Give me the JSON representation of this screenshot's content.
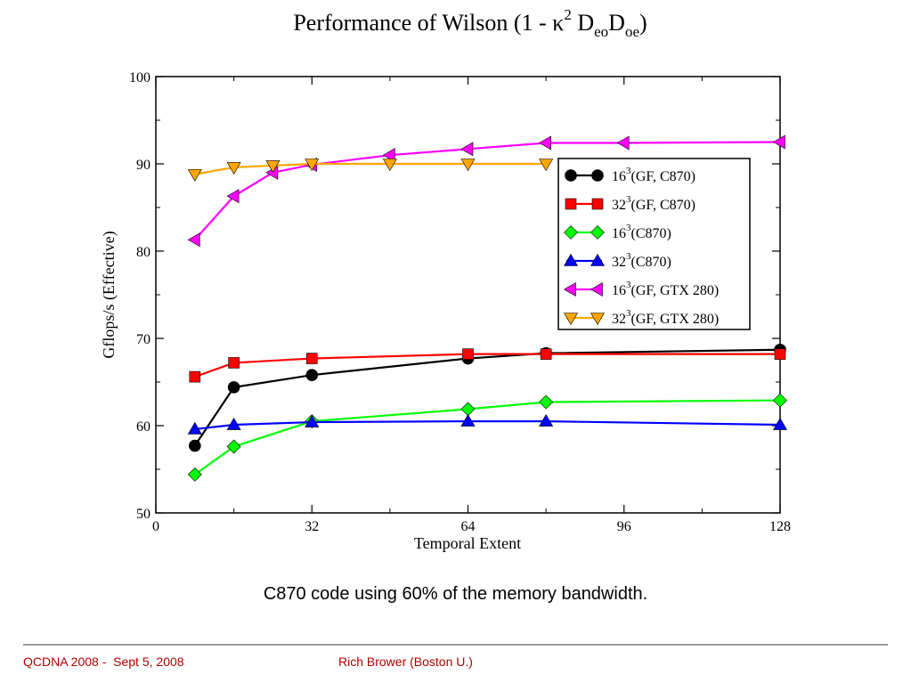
{
  "slide": {
    "caption": "C870 code using 60% of the memory bandwidth.",
    "footer_left": "QCDNA 2008 -  Sept 5, 2008",
    "footer_right": "Rich Brower (Boston U.)",
    "footer_color": "#b00000"
  },
  "chart_data": {
    "type": "line",
    "title_parts": {
      "prefix": "Performance of Wilson (1 - ",
      "kappa": "κ",
      "sup": "2",
      "d1": " D",
      "sub1": "eo",
      "d2": "D",
      "sub2": "oe",
      "suffix": ")"
    },
    "xlabel": "Temporal Extent",
    "ylabel": "Gflops/s (Effective)",
    "xlim": [
      0,
      128
    ],
    "ylim": [
      50,
      100
    ],
    "xticks": [
      0,
      32,
      64,
      96,
      128
    ],
    "yticks": [
      50,
      60,
      70,
      80,
      90,
      100
    ],
    "grid": false,
    "legend_position": "upper-right",
    "series": [
      {
        "name": "16³(GF, C870)",
        "base": "16",
        "sup": "3",
        "label": "(GF, C870)",
        "color": "#000000",
        "marker": "circle",
        "x": [
          8,
          16,
          32,
          64,
          80,
          128
        ],
        "y": [
          57.7,
          64.4,
          65.8,
          67.7,
          68.3,
          68.7
        ]
      },
      {
        "name": "32³(GF, C870)",
        "base": "32",
        "sup": "3",
        "label": "(GF, C870)",
        "color": "#ff0000",
        "marker": "square",
        "x": [
          8,
          16,
          32,
          64,
          80,
          128
        ],
        "y": [
          65.6,
          67.2,
          67.7,
          68.2,
          68.2,
          68.2
        ]
      },
      {
        "name": "16³(C870)",
        "base": "16",
        "sup": "3",
        "label": "(C870)",
        "color": "#00ff00",
        "marker": "diamond",
        "x": [
          8,
          16,
          32,
          64,
          80,
          128
        ],
        "y": [
          54.4,
          57.6,
          60.5,
          61.9,
          62.7,
          62.9
        ]
      },
      {
        "name": "32³(C870)",
        "base": "32",
        "sup": "3",
        "label": "(C870)",
        "color": "#0000ff",
        "marker": "triangle-up",
        "x": [
          8,
          16,
          32,
          64,
          80,
          128
        ],
        "y": [
          59.6,
          60.1,
          60.4,
          60.5,
          60.5,
          60.1
        ]
      },
      {
        "name": "16³(GF, GTX 280)",
        "base": "16",
        "sup": "3",
        "label": "(GF, GTX 280)",
        "color": "#ff00ff",
        "marker": "triangle-left",
        "x": [
          8,
          16,
          24,
          32,
          48,
          64,
          80,
          96,
          128
        ],
        "y": [
          81.3,
          86.3,
          89.0,
          89.9,
          91.0,
          91.7,
          92.4,
          92.4,
          92.5
        ]
      },
      {
        "name": "32³(GF, GTX 280)",
        "base": "32",
        "sup": "3",
        "label": "(GF, GTX 280)",
        "color": "#ffa500",
        "marker": "triangle-down",
        "x": [
          8,
          16,
          24,
          32,
          48,
          64,
          80
        ],
        "y": [
          88.8,
          89.6,
          89.8,
          90.0,
          90.0,
          90.0,
          90.0
        ]
      }
    ]
  }
}
